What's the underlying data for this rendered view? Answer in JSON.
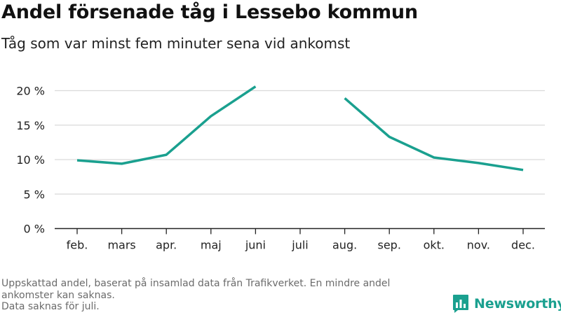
{
  "header": {
    "title": "Andel försenade tåg i Lessebo kommun",
    "subtitle": "Tåg som var minst fem minuter sena vid ankomst"
  },
  "footnote": {
    "line1": "Uppskattad andel, baserat på insamlad data från Trafikverket. En mindre andel",
    "line2": "ankomster kan saknas.",
    "line3": "Data saknas för juli."
  },
  "logo": {
    "text": "Newsworthy",
    "icon": "newsworthy-bar-chart-icon",
    "color": "#1aa08f"
  },
  "colors": {
    "line": "#1aa08f",
    "grid": "#d9d9d9",
    "axis": "#222222",
    "tick_text": "#222222"
  },
  "chart_data": {
    "type": "line",
    "title": "Andel försenade tåg i Lessebo kommun",
    "subtitle": "Tåg som var minst fem minuter sena vid ankomst",
    "xlabel": "",
    "ylabel": "",
    "categories": [
      "feb.",
      "mars",
      "apr.",
      "maj",
      "juni",
      "juli",
      "aug.",
      "sep.",
      "okt.",
      "nov.",
      "dec."
    ],
    "series": [
      {
        "values": [
          9.9,
          9.4,
          10.7,
          16.3,
          20.6,
          null,
          18.9,
          13.3,
          10.3,
          9.5,
          8.5
        ]
      }
    ],
    "ylim": [
      0,
      20
    ],
    "yticks": [
      0,
      5,
      10,
      15,
      20
    ],
    "ytick_labels": [
      "0 %",
      "5 %",
      "10 %",
      "15 %",
      "20 %"
    ],
    "grid": true,
    "legend": "none"
  }
}
